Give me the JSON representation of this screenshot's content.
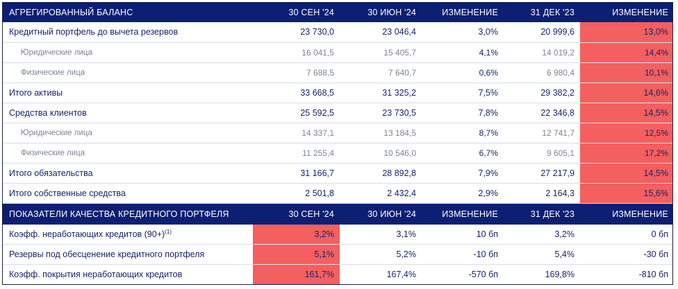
{
  "balance": {
    "header": [
      "АГРЕГИРОВАННЫЙ БАЛАНС",
      "30 СЕН '24",
      "30 ИЮН '24",
      "ИЗМЕНЕНИЕ",
      "31 ДЕК '23",
      "ИЗМЕНЕНИЕ"
    ],
    "rows": [
      {
        "label": "Кредитный портфель до вычета резервов",
        "v1": "23 730,0",
        "v2": "23 046,4",
        "c1": "3,0%",
        "v3": "20 999,6",
        "c2": "13,0%"
      },
      {
        "label": "Юридические лица",
        "v1": "16 041,5",
        "v2": "15 405,7",
        "c1": "4,1%",
        "v3": "14 019,2",
        "c2": "14,4%"
      },
      {
        "label": "Физические лица",
        "v1": "7 688,5",
        "v2": "7 640,7",
        "c1": "0,6%",
        "v3": "6 980,4",
        "c2": "10,1%"
      },
      {
        "label": "Итого активы",
        "v1": "33 668,5",
        "v2": "31 325,2",
        "c1": "7,5%",
        "v3": "29 382,2",
        "c2": "14,6%"
      },
      {
        "label": "Средства клиентов",
        "v1": "25 592,5",
        "v2": "23 730,5",
        "c1": "7,8%",
        "v3": "22 346,8",
        "c2": "14,5%"
      },
      {
        "label": "Юридические лица",
        "v1": "14 337,1",
        "v2": "13 184,5",
        "c1": "8,7%",
        "v3": "12 741,7",
        "c2": "12,5%"
      },
      {
        "label": "Физические лица",
        "v1": "11 255,4",
        "v2": "10 546,0",
        "c1": "6,7%",
        "v3": "9 605,1",
        "c2": "17,2%"
      },
      {
        "label": "Итого обязательства",
        "v1": "31 166,7",
        "v2": "28 892,8",
        "c1": "7,9%",
        "v3": "27 217,9",
        "c2": "14,5%"
      },
      {
        "label": "Итого собственные средства",
        "v1": "2 501,8",
        "v2": "2 432,4",
        "c1": "2,9%",
        "v3": "2 164,3",
        "c2": "15,6%"
      }
    ]
  },
  "quality": {
    "header": [
      "ПОКАЗАТЕЛИ КАЧЕСТВА КРЕДИТНОГО ПОРТФЕЛЯ",
      "30 СЕН '24",
      "30 ИЮН '24",
      "ИЗМЕНЕНИЕ",
      "31 ДЕК '23",
      "ИЗМЕНЕНИЕ"
    ],
    "rows": [
      {
        "label": "Коэфф. неработающих кредитов (90+)",
        "label_sup": "(1)",
        "v1": "3,2%",
        "v2": "3,1%",
        "c1": "10 бп",
        "v3": "3,2%",
        "c2": "0 бп"
      },
      {
        "label": "Резервы под обесценение кредитного портфеля",
        "v1": "5,1%",
        "v2": "5,2%",
        "c1": "-10 бп",
        "v3": "5,4%",
        "c2": "-30 бп"
      },
      {
        "label": "Коэфф. покрытия неработающих кредитов",
        "v1": "161,7%",
        "v2": "167,4%",
        "c1": "-570 бп",
        "v3": "169,8%",
        "c2": "-810 бп"
      }
    ]
  },
  "colors": {
    "header_bg": "#0d1f73",
    "highlight": "#f45f5f",
    "text": "#17236b",
    "subtext": "#7d8494"
  }
}
